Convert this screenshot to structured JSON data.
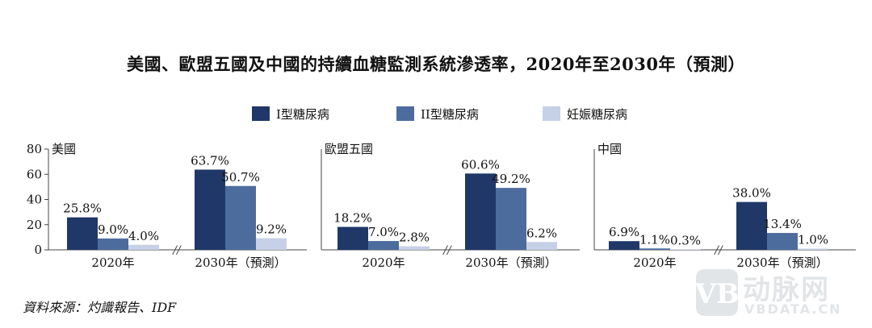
{
  "title": "美國、歐盟五國及中國的持續血糖監測系統滲透率，2020年至2030年（預測）",
  "source": "資料來源：灼識報告、IDF",
  "watermark": {
    "logo": "动脉网",
    "url": "VBDATA.CN"
  },
  "colors": {
    "type1": "#1f3868",
    "type2": "#4d6c9e",
    "gestational": "#c6d0e6",
    "axis": "#444444"
  },
  "chart_data": [
    {
      "type": "bar",
      "title": "美國",
      "categories": [
        "2020年",
        "2030年（預測）"
      ],
      "series": [
        {
          "name": "I型糖尿病",
          "values": [
            25.8,
            63.7
          ],
          "labels": [
            "25.8%",
            "63.7%"
          ]
        },
        {
          "name": "II型糖尿病",
          "values": [
            9.0,
            50.7
          ],
          "labels": [
            "9.0%",
            "50.7%"
          ]
        },
        {
          "name": "妊娠糖尿病",
          "values": [
            4.0,
            9.2
          ],
          "labels": [
            "4.0%",
            "9.2%"
          ]
        }
      ],
      "ylim": [
        0,
        80
      ],
      "yticks": [
        "0",
        "20",
        "40",
        "60",
        "80"
      ],
      "axis_break": "//",
      "legend": "top-center",
      "grid": false
    },
    {
      "type": "bar",
      "title": "歐盟五國",
      "categories": [
        "2020年",
        "2030年（預測）"
      ],
      "series": [
        {
          "name": "I型糖尿病",
          "values": [
            18.2,
            60.6
          ],
          "labels": [
            "18.2%",
            "60.6%"
          ]
        },
        {
          "name": "II型糖尿病",
          "values": [
            7.0,
            49.2
          ],
          "labels": [
            "7.0%",
            "49.2%"
          ]
        },
        {
          "name": "妊娠糖尿病",
          "values": [
            2.8,
            6.2
          ],
          "labels": [
            "2.8%",
            "6.2%"
          ]
        }
      ],
      "ylim": [
        0,
        80
      ],
      "axis_break": "//",
      "grid": false
    },
    {
      "type": "bar",
      "title": "中國",
      "categories": [
        "2020年",
        "2030年（預測）"
      ],
      "series": [
        {
          "name": "I型糖尿病",
          "values": [
            6.9,
            38.0
          ],
          "labels": [
            "6.9%",
            "38.0%"
          ]
        },
        {
          "name": "II型糖尿病",
          "values": [
            1.1,
            13.4
          ],
          "labels": [
            "1.1%",
            "13.4%"
          ]
        },
        {
          "name": "妊娠糖尿病",
          "values": [
            0.3,
            1.0
          ],
          "labels": [
            "0.3%",
            "1.0%"
          ]
        }
      ],
      "ylim": [
        0,
        80
      ],
      "axis_break": "//",
      "grid": false
    }
  ]
}
